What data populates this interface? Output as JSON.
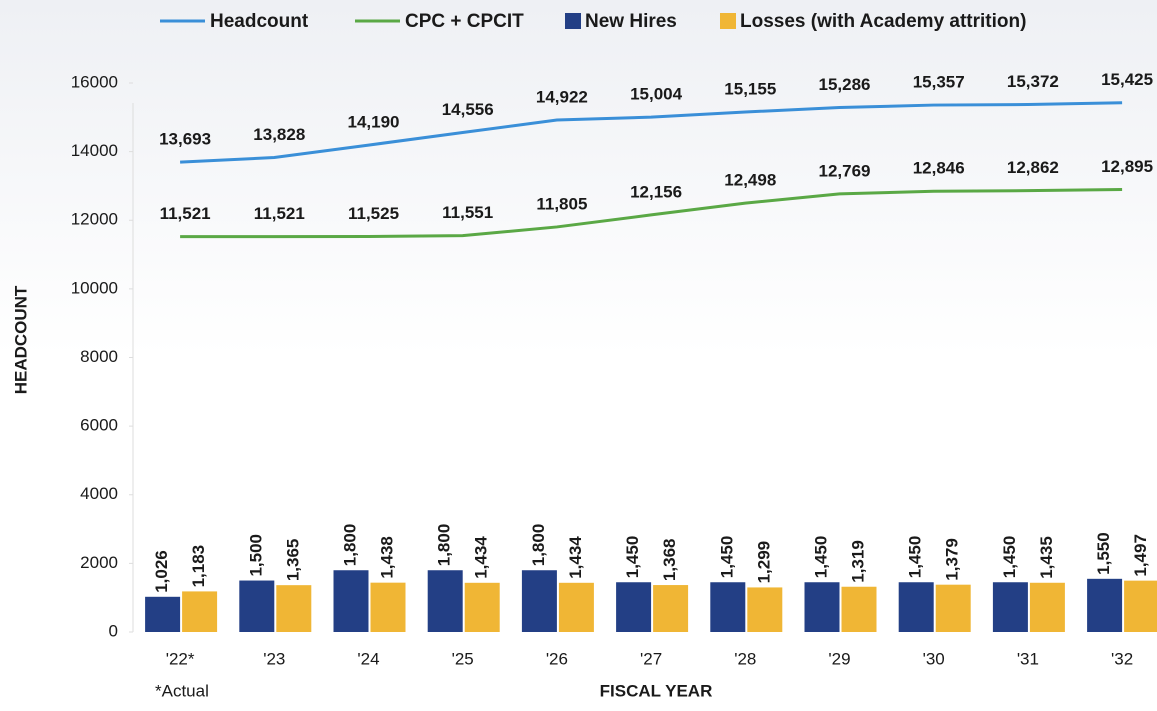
{
  "chart_data": {
    "type": "bar",
    "categories": [
      "'22*",
      "'23",
      "'24",
      "'25",
      "'26",
      "'27",
      "'28",
      "'29",
      "'30",
      "'31",
      "'32"
    ],
    "series": [
      {
        "name": "Headcount",
        "type": "line",
        "color": "#3a8fd8",
        "values": [
          13693,
          13828,
          14190,
          14556,
          14922,
          15004,
          15155,
          15286,
          15357,
          15372,
          15425
        ],
        "value_labels": [
          "13,693",
          "13,828",
          "14,190",
          "14,556",
          "14,922",
          "15,004",
          "15,155",
          "15,286",
          "15,357",
          "15,372",
          "15,425"
        ]
      },
      {
        "name": "CPC + CPCIT",
        "type": "line",
        "color": "#5aa845",
        "values": [
          11521,
          11521,
          11525,
          11551,
          11805,
          12156,
          12498,
          12769,
          12846,
          12862,
          12895
        ],
        "value_labels": [
          "11,521",
          "11,521",
          "11,525",
          "11,551",
          "11,805",
          "12,156",
          "12,498",
          "12,769",
          "12,846",
          "12,862",
          "12,895"
        ]
      },
      {
        "name": "New Hires",
        "type": "bar",
        "color": "#233f85",
        "values": [
          1026,
          1500,
          1800,
          1800,
          1800,
          1450,
          1450,
          1450,
          1450,
          1450,
          1550
        ],
        "value_labels": [
          "1,026",
          "1,500",
          "1,800",
          "1,800",
          "1,800",
          "1,450",
          "1,450",
          "1,450",
          "1,450",
          "1,450",
          "1,550"
        ]
      },
      {
        "name": "Losses (with Academy attrition)",
        "type": "bar",
        "color": "#f0b635",
        "values": [
          1183,
          1365,
          1438,
          1434,
          1434,
          1368,
          1299,
          1319,
          1379,
          1435,
          1497
        ],
        "value_labels": [
          "1,183",
          "1,365",
          "1,438",
          "1,434",
          "1,434",
          "1,368",
          "1,299",
          "1,319",
          "1,379",
          "1,435",
          "1,497"
        ]
      }
    ],
    "y_label": "HEADCOUNT",
    "x_label": "FISCAL YEAR",
    "annotation": "*Actual",
    "ylim": [
      0,
      16000
    ],
    "yticks": [
      0,
      2000,
      4000,
      6000,
      8000,
      10000,
      12000,
      14000,
      16000
    ],
    "legend": "top"
  }
}
